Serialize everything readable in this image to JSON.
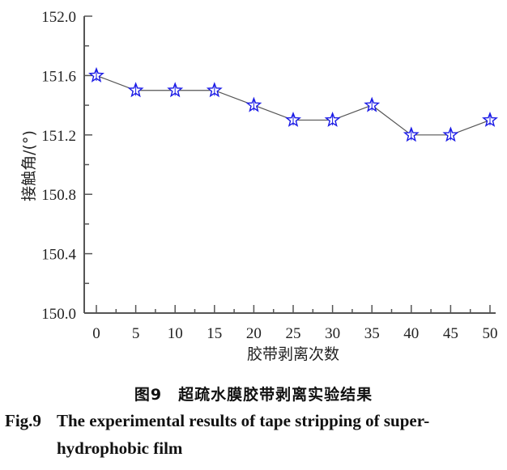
{
  "chart_data": {
    "type": "line",
    "title": "",
    "xlabel": "胶带剥离次数",
    "ylabel": "接触角/(°)",
    "x": [
      0,
      5,
      10,
      15,
      20,
      25,
      30,
      35,
      40,
      45,
      50
    ],
    "series": [
      {
        "name": "接触角",
        "values": [
          151.6,
          151.5,
          151.5,
          151.5,
          151.4,
          151.3,
          151.3,
          151.4,
          151.2,
          151.2,
          151.3
        ],
        "marker": "star",
        "marker_color": "#1a1ae6",
        "line_color": "#555555"
      }
    ],
    "xlim": [
      -1.5,
      51
    ],
    "ylim": [
      150.0,
      152.0
    ],
    "xticks": [
      0,
      5,
      10,
      15,
      20,
      25,
      30,
      35,
      40,
      45,
      50
    ],
    "yticks": [
      "150.0",
      "150.4",
      "150.8",
      "151.2",
      "151.6",
      "152.0"
    ],
    "grid": false,
    "legend": null
  },
  "caption": {
    "cn": "图9　超疏水膜胶带剥离实验结果",
    "en_label": "Fig.9",
    "en_line1": "The experimental results of tape stripping of super-",
    "en_line2": "hydrophobic film"
  }
}
